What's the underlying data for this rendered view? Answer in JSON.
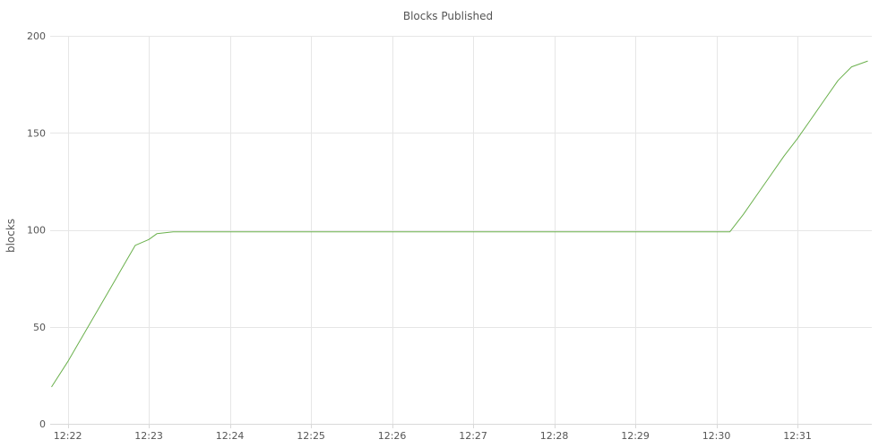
{
  "chart_data": {
    "type": "line",
    "title": "Blocks Published",
    "ylabel": "blocks",
    "xlabel": "",
    "ylim": [
      0,
      200
    ],
    "xlim": [
      "12:21:47",
      "12:31:55"
    ],
    "grid": true,
    "y_ticks": [
      0,
      50,
      100,
      150,
      200
    ],
    "x_ticks": [
      "12:22",
      "12:23",
      "12:24",
      "12:25",
      "12:26",
      "12:27",
      "12:28",
      "12:29",
      "12:30",
      "12:31"
    ],
    "series": [
      {
        "color": "#6ab04c",
        "x": [
          "12:21:48",
          "12:22:00",
          "12:22:10",
          "12:22:20",
          "12:22:30",
          "12:22:40",
          "12:22:50",
          "12:23:00",
          "12:23:06",
          "12:23:18",
          "12:24:00",
          "12:25:00",
          "12:26:00",
          "12:27:00",
          "12:28:00",
          "12:29:00",
          "12:30:00",
          "12:30:10",
          "12:30:20",
          "12:30:30",
          "12:30:40",
          "12:30:50",
          "12:31:00",
          "12:31:10",
          "12:31:20",
          "12:31:30",
          "12:31:40",
          "12:31:52"
        ],
        "values": [
          19,
          32,
          44,
          56,
          68,
          80,
          92,
          95,
          98,
          99,
          99,
          99,
          99,
          99,
          99,
          99,
          99,
          99,
          108,
          118,
          128,
          138,
          147,
          157,
          167,
          177,
          184,
          187
        ]
      }
    ]
  }
}
